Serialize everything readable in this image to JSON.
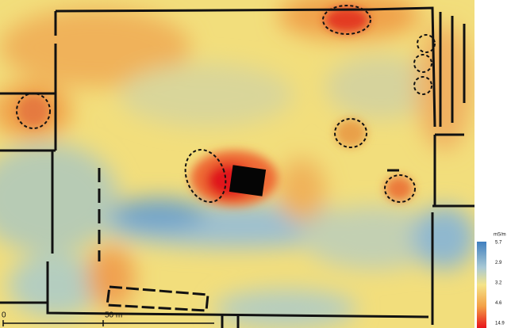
{
  "scale_bar": {
    "start": "0",
    "label": "50 m"
  },
  "legend": {
    "title": "mS/m",
    "labels": [
      "5.7",
      "2.9",
      "3.2",
      "4.6",
      "14.9"
    ]
  }
}
